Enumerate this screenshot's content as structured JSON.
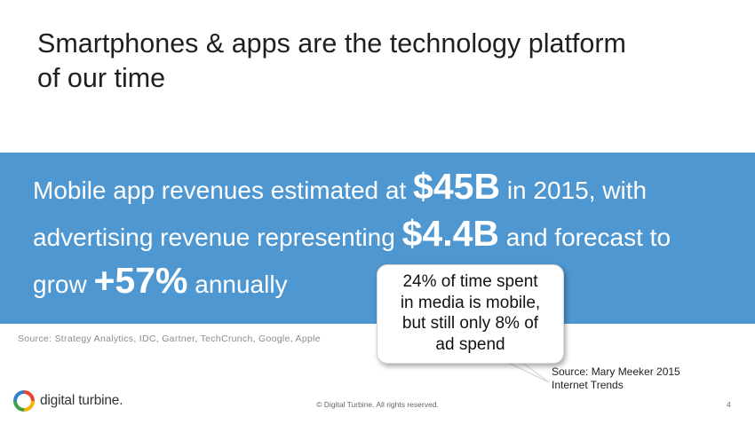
{
  "slide": {
    "title_line1": "Smartphones & apps are the technology platform",
    "title_line2": "of our time"
  },
  "band": {
    "background_color": "#4e97d1",
    "line1_prefix": "Mobile app revenues estimated at ",
    "line1_highlight": "$45B",
    "line1_suffix": " in 2015, with",
    "line2_prefix": "advertising revenue representing ",
    "line2_highlight": "$4.4B",
    "line2_suffix": " and forecast to",
    "line3_prefix": "grow ",
    "line3_highlight": "+57%",
    "line3_suffix": " annually"
  },
  "source_left": "Source: Strategy Analytics, IDC,  Gartner, TechCrunch, Google, Apple",
  "callout": {
    "line1": "24% of time spent",
    "line2": "in media is mobile,",
    "line3": "but still only 8% of",
    "line4": "ad spend"
  },
  "source_right": {
    "line1": "Source: Mary Meeker 2015",
    "line2": "Internet Trends"
  },
  "footer": {
    "logo_icon": "digital-turbine-ring-icon",
    "logo_text": "digital turbine.",
    "copyright": "© Digital Turbine. All rights reserved.",
    "page_number": "4"
  }
}
